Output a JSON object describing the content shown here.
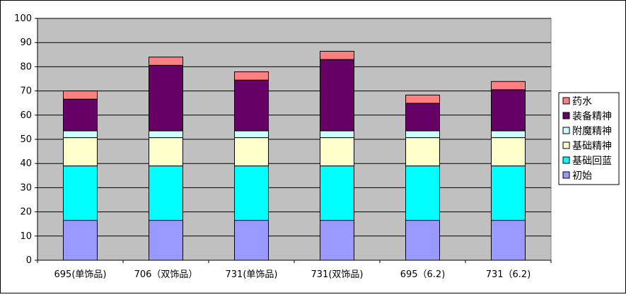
{
  "chart_data": {
    "type": "bar",
    "stacked": true,
    "categories": [
      "695(单饰品)",
      "706（双饰品）",
      "731(单饰品)",
      "731(双饰品)",
      "695（6.2)",
      "731（6.2)"
    ],
    "series": [
      {
        "name": "初始",
        "color": "#9999ff",
        "values": [
          16.5,
          16.5,
          16.5,
          16.5,
          16.5,
          16.5
        ]
      },
      {
        "name": "基础回蓝",
        "color": "#00ffff",
        "values": [
          22.5,
          22.5,
          22.5,
          22.5,
          22.5,
          22.5
        ]
      },
      {
        "name": "基础精神",
        "color": "#ffffcc",
        "values": [
          11.7,
          11.7,
          11.7,
          11.7,
          11.7,
          11.7
        ]
      },
      {
        "name": "附魔精神",
        "color": "#ccffff",
        "values": [
          2.8,
          2.8,
          2.8,
          2.8,
          2.8,
          2.8
        ]
      },
      {
        "name": "装备精神",
        "color": "#660066",
        "values": [
          13.1,
          27.1,
          21.0,
          29.5,
          11.4,
          17.0
        ]
      },
      {
        "name": "药水",
        "color": "#ff8080",
        "values": [
          3.4,
          3.4,
          3.4,
          3.4,
          3.4,
          3.4
        ]
      }
    ],
    "ylim": [
      0,
      100
    ],
    "yticks": [
      "0",
      "10",
      "20",
      "30",
      "40",
      "50",
      "60",
      "70",
      "80",
      "90",
      "100"
    ],
    "grid": true,
    "legend_position": "right",
    "plot_background": "#c0c0c0"
  }
}
